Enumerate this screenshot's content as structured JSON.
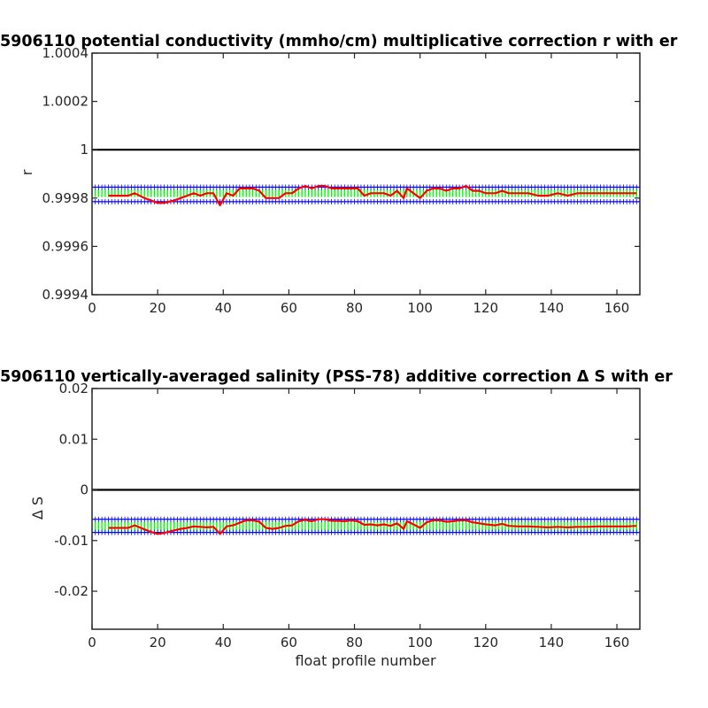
{
  "chart_data": [
    {
      "type": "line",
      "title": "5906110 potential conductivity (mmho/cm) multiplicative correction r with er",
      "xlabel": "",
      "ylabel": "r",
      "xlim": [
        0,
        167
      ],
      "ylim": [
        0.9994,
        1.0004
      ],
      "xticks": [
        "0",
        "20",
        "40",
        "60",
        "80",
        "100",
        "120",
        "140",
        "160"
      ],
      "yticks": [
        "0.9994",
        "0.9996",
        "0.9998",
        "1",
        "1.0002",
        "1.0004"
      ],
      "reference_line": {
        "y": 1,
        "color": "#000000"
      },
      "series": [
        {
          "role": "correction",
          "color": "#ff0000",
          "x": [
            5,
            8,
            11,
            13,
            16,
            18,
            20,
            22,
            25,
            27,
            29,
            31,
            33,
            35,
            37,
            39,
            41,
            43,
            45,
            47,
            49,
            51,
            53,
            55,
            57,
            59,
            61,
            63,
            65,
            67,
            69,
            71,
            73,
            75,
            77,
            79,
            81,
            83,
            85,
            87,
            89,
            91,
            93,
            95,
            96,
            98,
            100,
            102,
            104,
            106,
            108,
            110,
            112,
            114,
            116,
            118,
            120,
            123,
            125,
            127,
            130,
            133,
            136,
            139,
            142,
            145,
            148,
            151,
            154,
            157,
            160,
            163,
            166
          ],
          "y": [
            0.99981,
            0.99981,
            0.99981,
            0.99982,
            0.9998,
            0.99979,
            0.99978,
            0.99978,
            0.99979,
            0.9998,
            0.99981,
            0.99982,
            0.99981,
            0.99982,
            0.99982,
            0.99977,
            0.99982,
            0.99981,
            0.99984,
            0.99984,
            0.99984,
            0.99983,
            0.9998,
            0.9998,
            0.9998,
            0.99982,
            0.99982,
            0.99984,
            0.99985,
            0.99984,
            0.99985,
            0.99985,
            0.99984,
            0.99984,
            0.99984,
            0.99984,
            0.99984,
            0.99981,
            0.99982,
            0.99982,
            0.99982,
            0.99981,
            0.99983,
            0.9998,
            0.99984,
            0.99982,
            0.9998,
            0.99983,
            0.99984,
            0.99984,
            0.99983,
            0.99984,
            0.99984,
            0.99985,
            0.99983,
            0.99983,
            0.99982,
            0.99982,
            0.99983,
            0.99982,
            0.99982,
            0.99982,
            0.99981,
            0.99981,
            0.99982,
            0.99981,
            0.99982,
            0.99982,
            0.99982,
            0.99982,
            0.99982,
            0.99982,
            0.99982
          ]
        },
        {
          "role": "error_band",
          "color": "#00ff00",
          "x": [
            0,
            167
          ],
          "y": [
            0.99982,
            0.99982
          ],
          "error": 1.6e-05
        },
        {
          "role": "error_limits",
          "color": "#0000ff",
          "x": [
            0,
            167
          ],
          "upper": [
            0.999845,
            0.999845
          ],
          "lower": [
            0.999785,
            0.999785
          ]
        }
      ]
    },
    {
      "type": "line",
      "title": "5906110 vertically-averaged salinity (PSS-78) additive correction Δ S with er",
      "xlabel": "float profile number",
      "ylabel": "Δ S",
      "xlim": [
        0,
        167
      ],
      "ylim": [
        -0.0275,
        0.02
      ],
      "xticks": [
        "0",
        "20",
        "40",
        "60",
        "80",
        "100",
        "120",
        "140",
        "160"
      ],
      "yticks": [
        "-0.02",
        "-0.01",
        "0",
        "0.01",
        "0.02"
      ],
      "reference_line": {
        "y": 0,
        "color": "#000000"
      },
      "series": [
        {
          "role": "correction",
          "color": "#ff0000",
          "x": [
            5,
            8,
            11,
            13,
            16,
            18,
            20,
            22,
            25,
            27,
            29,
            31,
            33,
            35,
            37,
            39,
            41,
            43,
            45,
            47,
            49,
            51,
            53,
            55,
            57,
            59,
            61,
            63,
            65,
            67,
            69,
            71,
            73,
            75,
            77,
            79,
            81,
            83,
            85,
            87,
            89,
            91,
            93,
            95,
            96,
            98,
            100,
            102,
            104,
            106,
            108,
            110,
            112,
            114,
            116,
            118,
            120,
            123,
            125,
            127,
            130,
            133,
            136,
            139,
            142,
            145,
            148,
            151,
            154,
            157,
            160,
            163,
            166
          ],
          "y": [
            -0.0075,
            -0.0075,
            -0.0075,
            -0.007,
            -0.0078,
            -0.0083,
            -0.0087,
            -0.0085,
            -0.008,
            -0.0077,
            -0.0075,
            -0.0072,
            -0.0073,
            -0.0074,
            -0.0073,
            -0.0087,
            -0.0072,
            -0.007,
            -0.0065,
            -0.006,
            -0.006,
            -0.0063,
            -0.0075,
            -0.0077,
            -0.0075,
            -0.0071,
            -0.007,
            -0.0062,
            -0.0059,
            -0.0062,
            -0.0058,
            -0.0058,
            -0.0061,
            -0.0061,
            -0.0062,
            -0.006,
            -0.0062,
            -0.0069,
            -0.0068,
            -0.007,
            -0.0068,
            -0.0071,
            -0.0066,
            -0.0077,
            -0.0062,
            -0.0068,
            -0.0075,
            -0.0064,
            -0.006,
            -0.006,
            -0.0063,
            -0.0062,
            -0.006,
            -0.006,
            -0.0064,
            -0.0066,
            -0.0068,
            -0.007,
            -0.0067,
            -0.0071,
            -0.0072,
            -0.0072,
            -0.0073,
            -0.0074,
            -0.0073,
            -0.0074,
            -0.0073,
            -0.0073,
            -0.0072,
            -0.0072,
            -0.0072,
            -0.0072,
            -0.0071
          ]
        },
        {
          "role": "error_band",
          "color": "#00ff00",
          "x": [
            0,
            167
          ],
          "y": [
            -0.0072,
            -0.0072
          ],
          "error": 0.001
        },
        {
          "role": "error_limits",
          "color": "#0000ff",
          "x": [
            0,
            167
          ],
          "upper": [
            -0.0058,
            -0.0058
          ],
          "lower": [
            -0.0084,
            -0.0084
          ]
        }
      ]
    }
  ]
}
